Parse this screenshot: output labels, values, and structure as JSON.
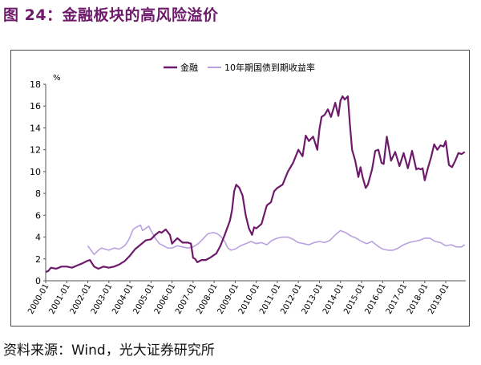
{
  "title": "图 24：金融板块的高风险溢价",
  "source": "资料来源：Wind，光大证券研究所",
  "colors": {
    "finance": "#6e1a6b",
    "bond": "#b9a0e0",
    "title": "#6e1a6b",
    "frame": "#4a4a4a"
  },
  "chart_data": {
    "type": "line",
    "ylabel": "%",
    "ylim": [
      0,
      18
    ],
    "yticks": [
      0,
      2,
      4,
      6,
      8,
      10,
      12,
      14,
      16,
      18
    ],
    "xlim": [
      2000.0,
      2019.95
    ],
    "x_tick_labels": [
      "2000-01",
      "2001-01",
      "2002-01",
      "2003-01",
      "2004-01",
      "2005-01",
      "2006-01",
      "2007-01",
      "2008-01",
      "2009-01",
      "2010-01",
      "2011-01",
      "2012-01",
      "2013-01",
      "2014-01",
      "2015-01",
      "2016-01",
      "2017-01",
      "2018-01",
      "2019-01"
    ],
    "grid": false,
    "legend_position": "top-center",
    "series": [
      {
        "name": "金融",
        "color": "#6e1a6b",
        "x": [
          2000.0,
          2000.12,
          2000.25,
          2000.5,
          2000.75,
          2001.0,
          2001.25,
          2001.5,
          2001.75,
          2001.95,
          2002.1,
          2002.3,
          2002.5,
          2002.75,
          2003.0,
          2003.25,
          2003.5,
          2003.75,
          2004.0,
          2004.25,
          2004.5,
          2004.75,
          2005.0,
          2005.2,
          2005.4,
          2005.5,
          2005.7,
          2005.9,
          2006.0,
          2006.25,
          2006.5,
          2006.75,
          2006.9,
          2007.0,
          2007.1,
          2007.2,
          2007.4,
          2007.6,
          2007.8,
          2007.95,
          2008.1,
          2008.3,
          2008.5,
          2008.75,
          2008.85,
          2008.95,
          2009.05,
          2009.2,
          2009.35,
          2009.5,
          2009.65,
          2009.8,
          2009.9,
          2010.0,
          2010.25,
          2010.5,
          2010.7,
          2010.85,
          2011.0,
          2011.25,
          2011.5,
          2011.75,
          2012.0,
          2012.2,
          2012.35,
          2012.5,
          2012.7,
          2012.9,
          2013.0,
          2013.1,
          2013.25,
          2013.4,
          2013.55,
          2013.75,
          2013.9,
          2014.0,
          2014.1,
          2014.2,
          2014.35,
          2014.45,
          2014.55,
          2014.7,
          2014.85,
          2014.95,
          2015.05,
          2015.2,
          2015.3,
          2015.5,
          2015.65,
          2015.8,
          2015.95,
          2016.05,
          2016.2,
          2016.4,
          2016.6,
          2016.8,
          2017.0,
          2017.2,
          2017.4,
          2017.6,
          2017.7,
          2017.8,
          2017.9,
          2018.0,
          2018.15,
          2018.3,
          2018.45,
          2018.6,
          2018.75,
          2018.9,
          2019.0,
          2019.15,
          2019.3,
          2019.45,
          2019.6,
          2019.75,
          2019.9
        ],
        "y": [
          0.8,
          0.9,
          1.2,
          1.1,
          1.3,
          1.3,
          1.2,
          1.4,
          1.6,
          1.8,
          1.9,
          1.3,
          1.1,
          1.3,
          1.2,
          1.3,
          1.5,
          1.8,
          2.3,
          2.9,
          3.3,
          3.7,
          3.8,
          4.2,
          4.5,
          4.4,
          4.7,
          4.2,
          3.4,
          3.9,
          3.5,
          3.5,
          3.4,
          2.1,
          2.0,
          1.7,
          1.9,
          1.9,
          2.1,
          2.3,
          2.5,
          3.2,
          4.2,
          5.5,
          6.5,
          8.2,
          8.8,
          8.5,
          7.8,
          6.0,
          4.8,
          4.2,
          4.9,
          4.8,
          5.2,
          6.9,
          7.2,
          8.2,
          8.5,
          8.8,
          10.0,
          10.8,
          12.0,
          11.4,
          13.3,
          12.8,
          13.2,
          12.0,
          13.9,
          15.0,
          15.2,
          15.7,
          15.0,
          16.3,
          15.1,
          16.5,
          16.9,
          16.6,
          16.9,
          14.3,
          12.0,
          11.0,
          9.5,
          10.4,
          9.5,
          8.5,
          8.8,
          10.2,
          11.9,
          12.0,
          10.8,
          10.7,
          13.2,
          11.0,
          11.8,
          10.5,
          11.7,
          10.3,
          11.9,
          10.2,
          10.3,
          10.2,
          10.3,
          9.2,
          10.3,
          11.3,
          12.5,
          12.0,
          12.4,
          12.3,
          12.8,
          10.6,
          10.4,
          11.0,
          11.7,
          11.6,
          11.8
        ]
      },
      {
        "name": "10年期国债到期收益率",
        "color": "#b9a0e0",
        "x": [
          2002.0,
          2002.15,
          2002.3,
          2002.5,
          2002.65,
          2002.8,
          2003.0,
          2003.25,
          2003.5,
          2003.75,
          2003.9,
          2004.0,
          2004.15,
          2004.3,
          2004.5,
          2004.6,
          2004.75,
          2004.9,
          2005.0,
          2005.2,
          2005.4,
          2005.6,
          2005.8,
          2006.0,
          2006.25,
          2006.5,
          2006.75,
          2007.0,
          2007.25,
          2007.5,
          2007.7,
          2007.9,
          2008.0,
          2008.15,
          2008.3,
          2008.5,
          2008.65,
          2008.8,
          2009.0,
          2009.25,
          2009.5,
          2009.75,
          2010.0,
          2010.25,
          2010.5,
          2010.75,
          2011.0,
          2011.25,
          2011.5,
          2011.75,
          2012.0,
          2012.25,
          2012.5,
          2012.75,
          2013.0,
          2013.25,
          2013.5,
          2013.75,
          2014.0,
          2014.25,
          2014.5,
          2014.75,
          2015.0,
          2015.25,
          2015.5,
          2015.75,
          2016.0,
          2016.25,
          2016.5,
          2016.75,
          2017.0,
          2017.25,
          2017.5,
          2017.75,
          2018.0,
          2018.25,
          2018.5,
          2018.75,
          2019.0,
          2019.25,
          2019.5,
          2019.75,
          2019.9
        ],
        "y": [
          3.2,
          2.8,
          2.4,
          2.8,
          3.0,
          2.9,
          2.8,
          3.0,
          2.9,
          3.2,
          3.6,
          4.0,
          4.7,
          4.9,
          5.1,
          4.6,
          4.8,
          5.0,
          4.6,
          3.9,
          3.4,
          3.2,
          3.0,
          3.0,
          3.2,
          3.1,
          3.0,
          3.1,
          3.4,
          3.9,
          4.3,
          4.4,
          4.4,
          4.3,
          4.1,
          3.6,
          3.0,
          2.8,
          2.9,
          3.2,
          3.4,
          3.6,
          3.4,
          3.5,
          3.3,
          3.7,
          3.9,
          4.0,
          4.0,
          3.8,
          3.5,
          3.4,
          3.3,
          3.5,
          3.6,
          3.5,
          3.7,
          4.2,
          4.6,
          4.4,
          4.1,
          3.9,
          3.6,
          3.4,
          3.6,
          3.2,
          2.9,
          2.8,
          2.8,
          3.0,
          3.3,
          3.5,
          3.6,
          3.7,
          3.9,
          3.9,
          3.6,
          3.5,
          3.2,
          3.3,
          3.1,
          3.1,
          3.3
        ]
      }
    ]
  }
}
